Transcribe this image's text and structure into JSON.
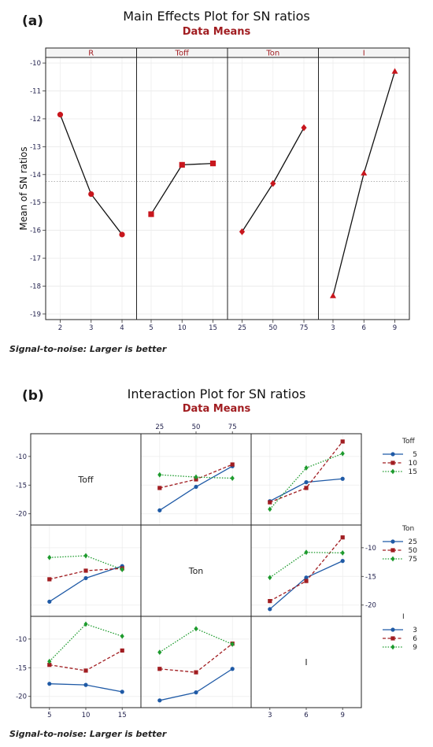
{
  "chart_data": [
    {
      "type": "line",
      "panel_label": "(a)",
      "title": "Main Effects Plot for SN ratios",
      "subtitle": "Data Means",
      "ylabel": "Mean of SN ratios",
      "ylim": [
        -19.2,
        -9.8
      ],
      "yticks": [
        -10,
        -11,
        -12,
        -13,
        -14,
        -15,
        -16,
        -17,
        -18,
        -19
      ],
      "mean_line": -14.25,
      "footnote": "Signal-to-noise: Larger is better",
      "factors": [
        {
          "name": "R",
          "levels": [
            "2",
            "3",
            "4"
          ],
          "values": [
            -11.85,
            -14.7,
            -16.15
          ],
          "marker": "circle"
        },
        {
          "name": "Toff",
          "levels": [
            "5",
            "10",
            "15"
          ],
          "values": [
            -15.42,
            -13.65,
            -13.6
          ],
          "marker": "square"
        },
        {
          "name": "Ton",
          "levels": [
            "25",
            "50",
            "75"
          ],
          "values": [
            -16.05,
            -14.32,
            -12.32
          ],
          "marker": "diamond"
        },
        {
          "name": "I",
          "levels": [
            "3",
            "6",
            "9"
          ],
          "values": [
            -18.35,
            -13.95,
            -10.3
          ],
          "marker": "triangle"
        }
      ]
    },
    {
      "type": "line",
      "panel_label": "(b)",
      "title": "Interaction Plot for SN ratios",
      "subtitle": "Data Means",
      "footnote": "Signal-to-noise: Larger is better",
      "factors": [
        "Toff",
        "Ton",
        "I"
      ],
      "levels": {
        "Toff": [
          "5",
          "10",
          "15"
        ],
        "Ton": [
          "25",
          "50",
          "75"
        ],
        "I": [
          "3",
          "6",
          "9"
        ]
      },
      "ylim": [
        -21,
        -7
      ],
      "yticks": [
        -10,
        -15,
        -20
      ],
      "legends": [
        {
          "title": "Toff",
          "entries": [
            "5",
            "10",
            "15"
          ]
        },
        {
          "title": "Ton",
          "entries": [
            "25",
            "50",
            "75"
          ]
        },
        {
          "title": "I",
          "entries": [
            "3",
            "6",
            "9"
          ]
        }
      ],
      "cells": [
        {
          "row": 0,
          "col": 1,
          "x_factor": "Ton",
          "trace_factor": "Toff",
          "series": [
            {
              "name": "5",
              "values": [
                -19.4,
                -15.3,
                -11.7
              ]
            },
            {
              "name": "10",
              "values": [
                -15.5,
                -14.0,
                -11.4
              ]
            },
            {
              "name": "15",
              "values": [
                -13.2,
                -13.6,
                -13.8
              ]
            }
          ]
        },
        {
          "row": 0,
          "col": 2,
          "x_factor": "I",
          "trace_factor": "Toff",
          "series": [
            {
              "name": "5",
              "values": [
                -17.8,
                -14.5,
                -13.9
              ]
            },
            {
              "name": "10",
              "values": [
                -18.0,
                -15.5,
                -7.4
              ]
            },
            {
              "name": "15",
              "values": [
                -19.2,
                -12.0,
                -9.5
              ]
            }
          ]
        },
        {
          "row": 1,
          "col": 0,
          "x_factor": "Toff",
          "trace_factor": "Ton",
          "series": [
            {
              "name": "25",
              "values": [
                -19.4,
                -15.3,
                -13.2
              ]
            },
            {
              "name": "50",
              "values": [
                -15.5,
                -14.0,
                -13.6
              ]
            },
            {
              "name": "75",
              "values": [
                -11.7,
                -11.4,
                -13.8
              ]
            }
          ]
        },
        {
          "row": 1,
          "col": 2,
          "x_factor": "I",
          "trace_factor": "Ton",
          "series": [
            {
              "name": "25",
              "values": [
                -20.7,
                -15.2,
                -12.3
              ]
            },
            {
              "name": "50",
              "values": [
                -19.3,
                -15.8,
                -8.2
              ]
            },
            {
              "name": "75",
              "values": [
                -15.2,
                -10.8,
                -10.9
              ]
            }
          ]
        },
        {
          "row": 2,
          "col": 0,
          "x_factor": "Toff",
          "trace_factor": "I",
          "series": [
            {
              "name": "3",
              "values": [
                -17.8,
                -18.0,
                -19.2
              ]
            },
            {
              "name": "6",
              "values": [
                -14.5,
                -15.5,
                -12.0
              ]
            },
            {
              "name": "9",
              "values": [
                -13.9,
                -7.4,
                -9.5
              ]
            }
          ]
        },
        {
          "row": 2,
          "col": 1,
          "x_factor": "Ton",
          "trace_factor": "I",
          "series": [
            {
              "name": "3",
              "values": [
                -20.7,
                -19.3,
                -15.2
              ]
            },
            {
              "name": "6",
              "values": [
                -15.2,
                -15.8,
                -10.8
              ]
            },
            {
              "name": "9",
              "values": [
                -12.3,
                -8.2,
                -10.9
              ]
            }
          ]
        }
      ]
    }
  ]
}
